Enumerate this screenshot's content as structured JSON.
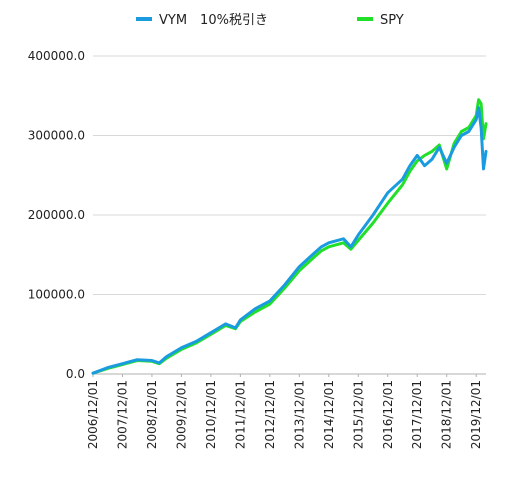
{
  "chart_data": {
    "type": "line",
    "title": "",
    "xlabel": "",
    "ylabel": "",
    "ylim": [
      0,
      400000
    ],
    "y_ticks": [
      "0.0",
      "100000.0",
      "200000.0",
      "300000.0",
      "400000.0"
    ],
    "x_ticks": [
      "2006/12/01",
      "2007/12/01",
      "2008/12/01",
      "2009/12/01",
      "2010/12/01",
      "2011/12/01",
      "2012/12/01",
      "2013/12/01",
      "2014/12/01",
      "2015/12/01",
      "2016/12/01",
      "2017/12/01",
      "2018/12/01",
      "2019/12/01"
    ],
    "grid": "horizontal",
    "legend_position": "top",
    "x": [
      "2006/12/01",
      "2007/06/01",
      "2007/12/01",
      "2008/06/01",
      "2008/12/01",
      "2009/03/01",
      "2009/06/01",
      "2009/12/01",
      "2010/06/01",
      "2010/12/01",
      "2011/06/01",
      "2011/10/01",
      "2011/12/01",
      "2012/06/01",
      "2012/12/01",
      "2013/06/01",
      "2013/12/01",
      "2014/06/01",
      "2014/09/01",
      "2014/12/01",
      "2015/06/01",
      "2015/09/01",
      "2015/12/01",
      "2016/06/01",
      "2016/12/01",
      "2017/06/01",
      "2017/09/01",
      "2017/12/01",
      "2018/03/01",
      "2018/06/01",
      "2018/09/01",
      "2018/12/01",
      "2019/03/01",
      "2019/06/01",
      "2019/09/01",
      "2019/12/01",
      "2020/01/01",
      "2020/02/01",
      "2020/03/01",
      "2020/04/01"
    ],
    "series": [
      {
        "name": "VYM　10%税引き",
        "color": "#1a9be0",
        "values": [
          1000,
          8000,
          13000,
          18000,
          17000,
          14000,
          22000,
          33000,
          41000,
          52000,
          63000,
          58000,
          68000,
          82000,
          92000,
          112000,
          135000,
          152000,
          160000,
          165000,
          170000,
          160000,
          175000,
          200000,
          228000,
          245000,
          262000,
          275000,
          262000,
          270000,
          285000,
          265000,
          285000,
          300000,
          305000,
          320000,
          335000,
          310000,
          258000,
          280000
        ]
      },
      {
        "name": "SPY",
        "color": "#22e02a",
        "values": [
          1000,
          7000,
          12000,
          17000,
          16000,
          13000,
          20000,
          31000,
          39000,
          50000,
          61000,
          57000,
          66000,
          78000,
          88000,
          108000,
          130000,
          147000,
          155000,
          160000,
          165000,
          157000,
          168000,
          190000,
          215000,
          238000,
          255000,
          268000,
          275000,
          280000,
          288000,
          258000,
          290000,
          305000,
          310000,
          325000,
          345000,
          340000,
          296000,
          315000
        ]
      }
    ]
  }
}
